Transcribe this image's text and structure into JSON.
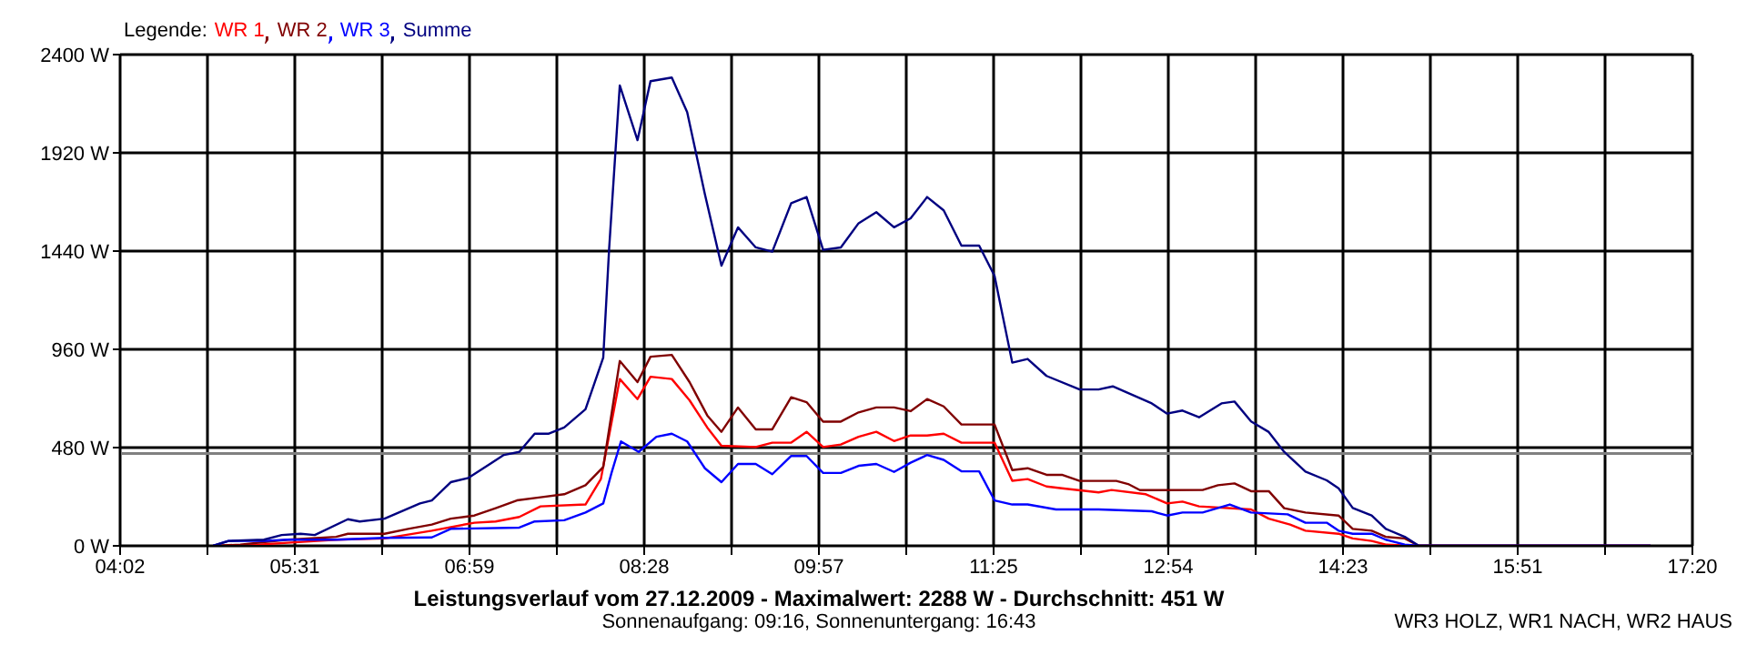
{
  "chart_data": {
    "type": "line",
    "title": "Leistungsverlauf vom 27.12.2009 - Maximalwert: 2288 W - Durchschnitt: 451 W",
    "subtitle": "Sonnenaufgang: 09:16, Sonnenuntergang: 16:43",
    "legend_title": "Legende:",
    "legend": "top left",
    "annotations": [
      "WR3 HOLZ, WR1 NACH, WR2 HAUS"
    ],
    "grid": true,
    "marker": "none",
    "xlim": [
      4.0333,
      17.3333
    ],
    "xticks": [
      {
        "value": 4.0333,
        "label": "04:02"
      },
      {
        "value": 4.7722,
        "label": null
      },
      {
        "value": 5.5111,
        "label": "05:31"
      },
      {
        "value": 6.25,
        "label": null
      },
      {
        "value": 6.9889,
        "label": "06:59"
      },
      {
        "value": 7.7278,
        "label": null
      },
      {
        "value": 8.4667,
        "label": "08:28"
      },
      {
        "value": 9.2056,
        "label": null
      },
      {
        "value": 9.9444,
        "label": "09:57"
      },
      {
        "value": 10.6833,
        "label": null
      },
      {
        "value": 11.4222,
        "label": "11:25"
      },
      {
        "value": 12.1611,
        "label": null
      },
      {
        "value": 12.9,
        "label": "12:54"
      },
      {
        "value": 13.6389,
        "label": null
      },
      {
        "value": 14.3778,
        "label": "14:23"
      },
      {
        "value": 15.1167,
        "label": null
      },
      {
        "value": 15.8556,
        "label": "15:51"
      },
      {
        "value": 16.5944,
        "label": null
      },
      {
        "value": 17.3333,
        "label": "17:20"
      }
    ],
    "ylim": [
      0,
      2400
    ],
    "yticks": [
      {
        "value": 0,
        "label": "0 W"
      },
      {
        "value": 480,
        "label": "480 W"
      },
      {
        "value": 960,
        "label": "960 W"
      },
      {
        "value": 1440,
        "label": "1440 W"
      },
      {
        "value": 1920,
        "label": "1920 W"
      },
      {
        "value": 2400,
        "label": "2400 W"
      }
    ],
    "ref_lines": [
      {
        "axis": "y",
        "value": 451,
        "label": null,
        "color": "#808080"
      }
    ],
    "series": [
      {
        "name": "WR 1",
        "color": "#ff0000",
        "x": [
          5.05,
          5.45,
          5.86,
          6.27,
          6.67,
          7.03,
          7.21,
          7.41,
          7.59,
          7.97,
          8.1,
          8.26,
          8.41,
          8.52,
          8.7,
          8.85,
          9.0,
          9.12,
          9.41,
          9.55,
          9.71,
          9.84,
          9.98,
          10.13,
          10.28,
          10.43,
          10.58,
          10.72,
          10.86,
          11.0,
          11.15,
          11.43,
          11.58,
          11.71,
          11.87,
          12.0,
          12.31,
          12.42,
          12.71,
          12.89,
          13.02,
          13.16,
          13.6,
          13.75,
          13.93,
          14.06,
          14.34,
          14.46,
          14.62,
          14.74,
          14.95,
          16.98
        ],
        "values": [
          0,
          15,
          30,
          36,
          74,
          113,
          119,
          141,
          193,
          202,
          326,
          815,
          717,
          826,
          815,
          711,
          578,
          489,
          483,
          504,
          504,
          557,
          483,
          495,
          533,
          557,
          512,
          539,
          539,
          548,
          504,
          504,
          318,
          326,
          290,
          281,
          261,
          273,
          252,
          207,
          216,
          193,
          178,
          133,
          104,
          74,
          59,
          36,
          24,
          6,
          0,
          0
        ]
      },
      {
        "name": "WR 2",
        "color": "#800000",
        "x": [
          4.82,
          5.05,
          5.45,
          5.86,
          5.96,
          6.27,
          6.47,
          6.67,
          6.83,
          7.03,
          7.21,
          7.39,
          7.59,
          7.79,
          7.97,
          8.12,
          8.26,
          8.41,
          8.52,
          8.7,
          8.85,
          9.0,
          9.12,
          9.26,
          9.41,
          9.55,
          9.71,
          9.84,
          9.98,
          10.13,
          10.28,
          10.43,
          10.58,
          10.72,
          10.86,
          11.0,
          11.15,
          11.43,
          11.58,
          11.71,
          11.87,
          12.0,
          12.15,
          12.46,
          12.56,
          12.66,
          13.19,
          13.32,
          13.46,
          13.6,
          13.75,
          13.88,
          14.06,
          14.34,
          14.46,
          14.62,
          14.74,
          14.9,
          15.02,
          16.98
        ],
        "values": [
          0,
          6,
          30,
          44,
          59,
          59,
          83,
          104,
          133,
          148,
          184,
          222,
          237,
          252,
          296,
          385,
          903,
          800,
          924,
          933,
          800,
          637,
          557,
          676,
          569,
          569,
          726,
          702,
          607,
          607,
          652,
          676,
          676,
          658,
          717,
          681,
          593,
          593,
          370,
          379,
          347,
          347,
          317,
          317,
          302,
          272,
          273,
          296,
          305,
          267,
          267,
          184,
          163,
          148,
          83,
          74,
          44,
          36,
          0,
          0
        ]
      },
      {
        "name": "WR 3",
        "color": "#0000ff",
        "x": [
          4.82,
          4.95,
          5.25,
          5.45,
          5.86,
          6.27,
          6.67,
          6.83,
          7.41,
          7.54,
          7.79,
          7.97,
          8.12,
          8.19,
          8.27,
          8.42,
          8.57,
          8.7,
          8.83,
          8.98,
          9.12,
          9.26,
          9.41,
          9.55,
          9.71,
          9.84,
          9.98,
          10.13,
          10.28,
          10.43,
          10.58,
          10.72,
          10.86,
          11.0,
          11.15,
          11.3,
          11.43,
          11.58,
          11.71,
          11.95,
          12.31,
          12.76,
          12.89,
          13.02,
          13.19,
          13.42,
          13.6,
          13.91,
          14.06,
          14.24,
          14.34,
          14.46,
          14.62,
          14.74,
          14.9,
          15.02,
          16.98
        ],
        "values": [
          0,
          24,
          24,
          30,
          30,
          39,
          41,
          83,
          89,
          119,
          125,
          163,
          207,
          356,
          510,
          459,
          533,
          548,
          510,
          379,
          311,
          400,
          400,
          350,
          439,
          439,
          356,
          356,
          391,
          400,
          361,
          406,
          444,
          420,
          364,
          364,
          222,
          202,
          202,
          178,
          178,
          169,
          148,
          163,
          163,
          202,
          163,
          154,
          113,
          113,
          74,
          59,
          59,
          30,
          6,
          0,
          0
        ]
      },
      {
        "name": "Summe",
        "color": "#000080",
        "x": [
          4.82,
          4.95,
          5.25,
          5.4,
          5.56,
          5.68,
          5.96,
          6.06,
          6.27,
          6.57,
          6.67,
          6.83,
          6.98,
          7.28,
          7.41,
          7.54,
          7.66,
          7.79,
          7.97,
          8.12,
          8.17,
          8.22,
          8.26,
          8.41,
          8.52,
          8.7,
          8.83,
          8.98,
          9.12,
          9.26,
          9.41,
          9.55,
          9.71,
          9.84,
          9.98,
          10.13,
          10.28,
          10.43,
          10.58,
          10.72,
          10.86,
          11.0,
          11.15,
          11.3,
          11.43,
          11.58,
          11.71,
          11.87,
          12.15,
          12.31,
          12.43,
          12.76,
          12.89,
          13.02,
          13.16,
          13.35,
          13.46,
          13.6,
          13.75,
          13.88,
          14.06,
          14.24,
          14.34,
          14.46,
          14.62,
          14.74,
          14.9,
          15.02,
          16.98
        ],
        "values": [
          0,
          24,
          30,
          53,
          59,
          53,
          130,
          119,
          133,
          207,
          222,
          311,
          332,
          444,
          459,
          548,
          548,
          578,
          667,
          919,
          1452,
          1896,
          2249,
          1982,
          2270,
          2288,
          2119,
          1718,
          1369,
          1556,
          1458,
          1437,
          1674,
          1704,
          1446,
          1458,
          1576,
          1630,
          1556,
          1600,
          1704,
          1639,
          1467,
          1467,
          1319,
          895,
          913,
          830,
          764,
          764,
          779,
          696,
          646,
          661,
          628,
          696,
          705,
          608,
          556,
          459,
          363,
          320,
          281,
          185,
          148,
          83,
          44,
          0,
          0
        ]
      }
    ]
  }
}
